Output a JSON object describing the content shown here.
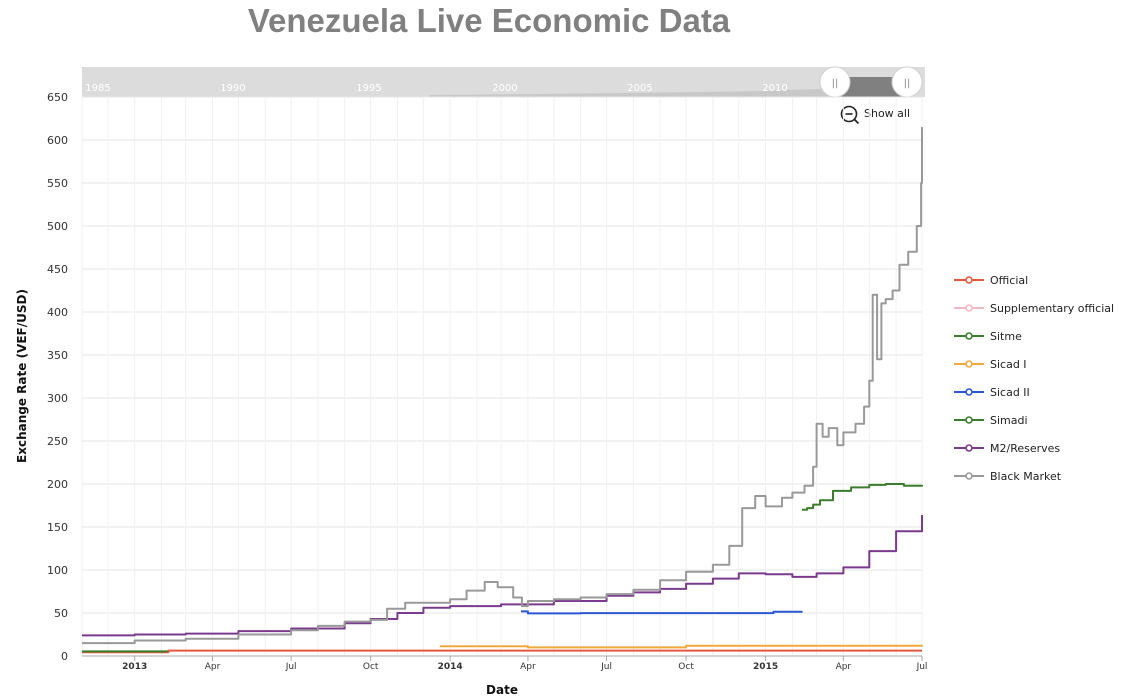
{
  "chart_data": {
    "type": "line",
    "title": "Venezuela Live Economic Data",
    "xlabel": "Date",
    "ylabel": "Exchange Rate (VEF/USD)",
    "ylim": [
      0,
      650
    ],
    "yticks": [
      0,
      50,
      100,
      150,
      200,
      250,
      300,
      350,
      400,
      450,
      500,
      550,
      600,
      650
    ],
    "xlim": [
      "2012-11-01",
      "2015-07-01"
    ],
    "xticks": [
      {
        "label": "2013",
        "date": "2013-01-01",
        "bold": true
      },
      {
        "label": "Apr",
        "date": "2013-04-01"
      },
      {
        "label": "Jul",
        "date": "2013-07-01"
      },
      {
        "label": "Oct",
        "date": "2013-10-01"
      },
      {
        "label": "2014",
        "date": "2014-01-01",
        "bold": true
      },
      {
        "label": "Apr",
        "date": "2014-04-01"
      },
      {
        "label": "Jul",
        "date": "2014-07-01"
      },
      {
        "label": "Oct",
        "date": "2014-10-01"
      },
      {
        "label": "2015",
        "date": "2015-01-01",
        "bold": true
      },
      {
        "label": "Apr",
        "date": "2015-04-01"
      },
      {
        "label": "Jul",
        "date": "2015-07-01"
      }
    ],
    "grid": true,
    "legend_position": "right",
    "series": [
      {
        "name": "Official",
        "color": "#e8573d",
        "x": [
          "2012-11-01",
          "2013-02-08",
          "2013-02-09",
          "2015-07-01"
        ],
        "y": [
          4.3,
          4.3,
          6.3,
          6.3
        ]
      },
      {
        "name": "Supplementary official",
        "color": "#f4b8c2",
        "x": [],
        "y": []
      },
      {
        "name": "Sitme",
        "color": "#3a7d2c",
        "x": [
          "2012-11-01",
          "2013-02-08"
        ],
        "y": [
          5.3,
          5.3
        ]
      },
      {
        "name": "Sicad I",
        "color": "#f2a93b",
        "x": [
          "2013-12-20",
          "2014-03-01",
          "2014-04-01",
          "2014-09-01",
          "2014-10-01",
          "2015-06-15",
          "2015-07-01"
        ],
        "y": [
          11.3,
          11.3,
          10.0,
          10.0,
          12.0,
          12.0,
          12.8
        ]
      },
      {
        "name": "Sicad II",
        "color": "#2a57d6",
        "x": [
          "2014-03-24",
          "2014-04-01",
          "2014-06-01",
          "2014-09-01",
          "2014-12-20",
          "2015-01-10",
          "2015-02-12"
        ],
        "y": [
          51.9,
          49.5,
          49.9,
          49.9,
          49.9,
          51.5,
          52.1
        ]
      },
      {
        "name": "Simadi",
        "color": "#3a7d2c",
        "x": [
          "2015-02-12",
          "2015-02-18",
          "2015-02-25",
          "2015-03-05",
          "2015-03-20",
          "2015-04-10",
          "2015-05-01",
          "2015-05-20",
          "2015-06-10",
          "2015-07-01"
        ],
        "y": [
          170,
          172,
          176,
          181,
          192,
          196,
          199,
          200,
          198,
          199
        ]
      },
      {
        "name": "M2/Reserves",
        "color": "#7b3a8e",
        "x": [
          "2012-11-01",
          "2013-01-01",
          "2013-03-01",
          "2013-05-01",
          "2013-07-01",
          "2013-09-01",
          "2013-10-01",
          "2013-11-01",
          "2013-12-01",
          "2014-01-01",
          "2014-03-01",
          "2014-05-01",
          "2014-07-01",
          "2014-08-01",
          "2014-09-01",
          "2014-10-01",
          "2014-11-01",
          "2014-12-01",
          "2015-01-01",
          "2015-02-01",
          "2015-03-01",
          "2015-04-01",
          "2015-05-01",
          "2015-06-01",
          "2015-07-01"
        ],
        "y": [
          24,
          25,
          26,
          29,
          32,
          38,
          43,
          50,
          56,
          58,
          60,
          64,
          70,
          74,
          78,
          84,
          90,
          96,
          95,
          92,
          96,
          103,
          122,
          145,
          164
        ]
      },
      {
        "name": "Black Market",
        "color": "#999999",
        "x": [
          "2012-11-01",
          "2013-01-01",
          "2013-03-01",
          "2013-05-01",
          "2013-07-01",
          "2013-08-01",
          "2013-09-01",
          "2013-10-01",
          "2013-10-20",
          "2013-11-10",
          "2013-12-01",
          "2014-01-01",
          "2014-01-20",
          "2014-02-10",
          "2014-02-25",
          "2014-03-15",
          "2014-03-25",
          "2014-04-01",
          "2014-05-01",
          "2014-06-01",
          "2014-07-01",
          "2014-08-01",
          "2014-09-01",
          "2014-10-01",
          "2014-11-01",
          "2014-11-20",
          "2014-12-05",
          "2014-12-20",
          "2015-01-01",
          "2015-01-20",
          "2015-02-01",
          "2015-02-15",
          "2015-02-25",
          "2015-03-01",
          "2015-03-08",
          "2015-03-15",
          "2015-03-25",
          "2015-04-01",
          "2015-04-15",
          "2015-04-25",
          "2015-05-01",
          "2015-05-05",
          "2015-05-10",
          "2015-05-15",
          "2015-05-20",
          "2015-05-28",
          "2015-06-05",
          "2015-06-15",
          "2015-06-25",
          "2015-06-30",
          "2015-07-01"
        ],
        "y": [
          15,
          18,
          20,
          25,
          30,
          35,
          40,
          42,
          55,
          62,
          62,
          66,
          76,
          86,
          80,
          68,
          58,
          64,
          66,
          68,
          72,
          77,
          88,
          98,
          106,
          128,
          172,
          186,
          174,
          184,
          190,
          198,
          220,
          270,
          255,
          265,
          245,
          260,
          270,
          290,
          320,
          420,
          345,
          410,
          415,
          425,
          455,
          470,
          500,
          550,
          615
        ]
      }
    ]
  },
  "navigator": {
    "labels": [
      "1985",
      "1990",
      "1995",
      "2000",
      "2005",
      "2010"
    ]
  },
  "controls": {
    "show_all": "Show all",
    "handle_left": "||",
    "handle_right": "||"
  }
}
